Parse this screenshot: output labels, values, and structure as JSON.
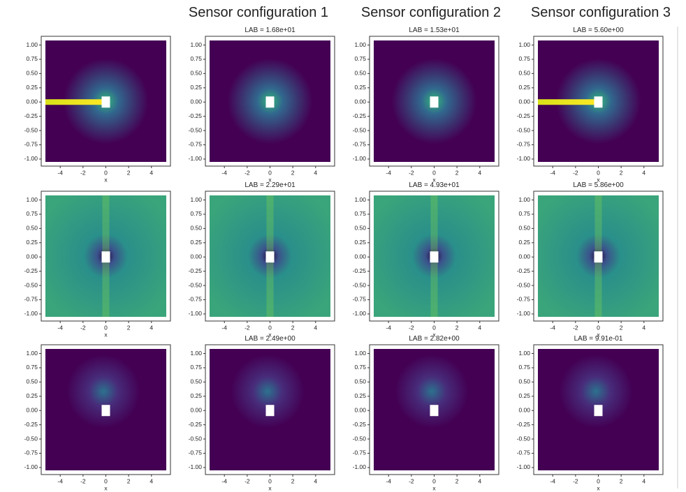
{
  "header": {
    "columns": [
      "Sensor configuration 1",
      "Sensor configuration 2",
      "Sensor configuration 3"
    ]
  },
  "axes": {
    "yticks": [
      "1.00",
      "0.75",
      "0.50",
      "0.25",
      "0.00",
      "-0.25",
      "-0.50",
      "-0.75",
      "-1.00"
    ],
    "xticks": [
      "-4",
      "-2",
      "0",
      "2",
      "4"
    ],
    "xlabel": "x"
  },
  "panels": [
    [
      {
        "title": null
      },
      {
        "title": "LAB = 1.68e+01"
      },
      {
        "title": "LAB = 1.53e+01"
      },
      {
        "title": "LAB = 5.60e+00"
      }
    ],
    [
      {
        "title": null
      },
      {
        "title": "LAB = 2.29e+01"
      },
      {
        "title": "LAB = 4.93e+01"
      },
      {
        "title": "LAB = 5.86e+00"
      }
    ],
    [
      {
        "title": null
      },
      {
        "title": "LAB = 2.49e+00"
      },
      {
        "title": "LAB = 2.82e+00"
      },
      {
        "title": "LAB = 9.91e-01"
      }
    ]
  ]
}
